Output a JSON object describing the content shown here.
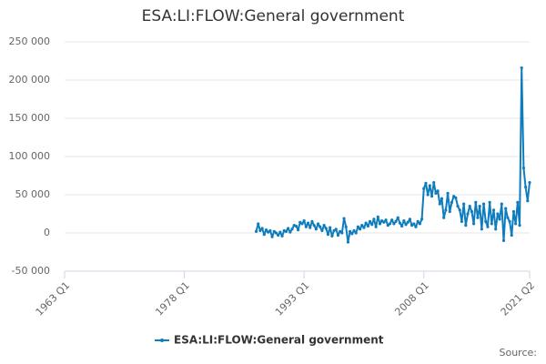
{
  "chart_data": {
    "type": "line",
    "title": "ESA:LI:FLOW:General government",
    "source_label": "Source:",
    "x": [
      "1987 Q1",
      "1987 Q2",
      "1987 Q3",
      "1987 Q4",
      "1988 Q1",
      "1988 Q2",
      "1988 Q3",
      "1988 Q4",
      "1989 Q1",
      "1989 Q2",
      "1989 Q3",
      "1989 Q4",
      "1990 Q1",
      "1990 Q2",
      "1990 Q3",
      "1990 Q4",
      "1991 Q1",
      "1991 Q2",
      "1991 Q3",
      "1991 Q4",
      "1992 Q1",
      "1992 Q2",
      "1992 Q3",
      "1992 Q4",
      "1993 Q1",
      "1993 Q2",
      "1993 Q3",
      "1993 Q4",
      "1994 Q1",
      "1994 Q2",
      "1994 Q3",
      "1994 Q4",
      "1995 Q1",
      "1995 Q2",
      "1995 Q3",
      "1995 Q4",
      "1996 Q1",
      "1996 Q2",
      "1996 Q3",
      "1996 Q4",
      "1997 Q1",
      "1997 Q2",
      "1997 Q3",
      "1997 Q4",
      "1998 Q1",
      "1998 Q2",
      "1998 Q3",
      "1998 Q4",
      "1999 Q1",
      "1999 Q2",
      "1999 Q3",
      "1999 Q4",
      "2000 Q1",
      "2000 Q2",
      "2000 Q3",
      "2000 Q4",
      "2001 Q1",
      "2001 Q2",
      "2001 Q3",
      "2001 Q4",
      "2002 Q1",
      "2002 Q2",
      "2002 Q3",
      "2002 Q4",
      "2003 Q1",
      "2003 Q2",
      "2003 Q3",
      "2003 Q4",
      "2004 Q1",
      "2004 Q2",
      "2004 Q3",
      "2004 Q4",
      "2005 Q1",
      "2005 Q2",
      "2005 Q3",
      "2005 Q4",
      "2006 Q1",
      "2006 Q2",
      "2006 Q3",
      "2006 Q4",
      "2007 Q1",
      "2007 Q2",
      "2007 Q3",
      "2007 Q4",
      "2008 Q1",
      "2008 Q2",
      "2008 Q3",
      "2008 Q4",
      "2009 Q1",
      "2009 Q2",
      "2009 Q3",
      "2009 Q4",
      "2010 Q1",
      "2010 Q2",
      "2010 Q3",
      "2010 Q4",
      "2011 Q1",
      "2011 Q2",
      "2011 Q3",
      "2011 Q4",
      "2012 Q1",
      "2012 Q2",
      "2012 Q3",
      "2012 Q4",
      "2013 Q1",
      "2013 Q2",
      "2013 Q3",
      "2013 Q4",
      "2014 Q1",
      "2014 Q2",
      "2014 Q3",
      "2014 Q4",
      "2015 Q1",
      "2015 Q2",
      "2015 Q3",
      "2015 Q4",
      "2016 Q1",
      "2016 Q2",
      "2016 Q3",
      "2016 Q4",
      "2017 Q1",
      "2017 Q2",
      "2017 Q3",
      "2017 Q4",
      "2018 Q1",
      "2018 Q2",
      "2018 Q3",
      "2018 Q4",
      "2019 Q1",
      "2019 Q2",
      "2019 Q3",
      "2019 Q4",
      "2020 Q1",
      "2020 Q2",
      "2020 Q3",
      "2020 Q4",
      "2021 Q1",
      "2021 Q2"
    ],
    "series": [
      {
        "name": "ESA:LI:FLOW:General government",
        "color": "#0f7dbd",
        "values": [
          2000,
          12000,
          3000,
          6000,
          -2000,
          4000,
          1000,
          3000,
          -5000,
          2000,
          0,
          -3000,
          1000,
          -4000,
          3000,
          2000,
          6000,
          1000,
          5000,
          10000,
          9000,
          4000,
          14000,
          12000,
          16000,
          8000,
          13000,
          7000,
          15000,
          10000,
          5000,
          12000,
          8000,
          3000,
          10000,
          6000,
          -2000,
          7000,
          -4000,
          3000,
          5000,
          -3000,
          2000,
          0,
          19000,
          8000,
          -12000,
          2000,
          -1000,
          3000,
          0,
          8000,
          5000,
          10000,
          7000,
          13000,
          9000,
          15000,
          11000,
          18000,
          8000,
          21000,
          12000,
          16000,
          14000,
          17000,
          10000,
          12000,
          17000,
          12000,
          15000,
          20000,
          13000,
          9000,
          16000,
          11000,
          14000,
          18000,
          10000,
          12000,
          8000,
          15000,
          12000,
          18000,
          58000,
          65000,
          50000,
          62000,
          48000,
          66000,
          52000,
          55000,
          38000,
          45000,
          20000,
          30000,
          52000,
          28000,
          40000,
          48000,
          46000,
          35000,
          30000,
          15000,
          38000,
          10000,
          25000,
          35000,
          28000,
          12000,
          40000,
          20000,
          35000,
          5000,
          38000,
          15000,
          8000,
          40000,
          12000,
          30000,
          5000,
          25000,
          18000,
          38000,
          -10000,
          32000,
          20000,
          15000,
          -3000,
          28000,
          12000,
          40000,
          10000,
          216000,
          85000,
          60000,
          42000,
          66000
        ]
      }
    ],
    "xlim": [
      "1963 Q1",
      "2021 Q2"
    ],
    "xticks": [
      "1963 Q1",
      "1978 Q1",
      "1993 Q1",
      "2008 Q1",
      "2021 Q2"
    ],
    "ylim": [
      -50000,
      250000
    ],
    "yticks": [
      {
        "value": -50000,
        "label": "-50 000"
      },
      0,
      {
        "value": 50000,
        "label": "50 000"
      },
      {
        "value": 100000,
        "label": "100 000"
      },
      {
        "value": 150000,
        "label": "150 000"
      },
      {
        "value": 200000,
        "label": "200 000"
      },
      {
        "value": 250000,
        "label": "250 000"
      }
    ],
    "grid": true
  }
}
